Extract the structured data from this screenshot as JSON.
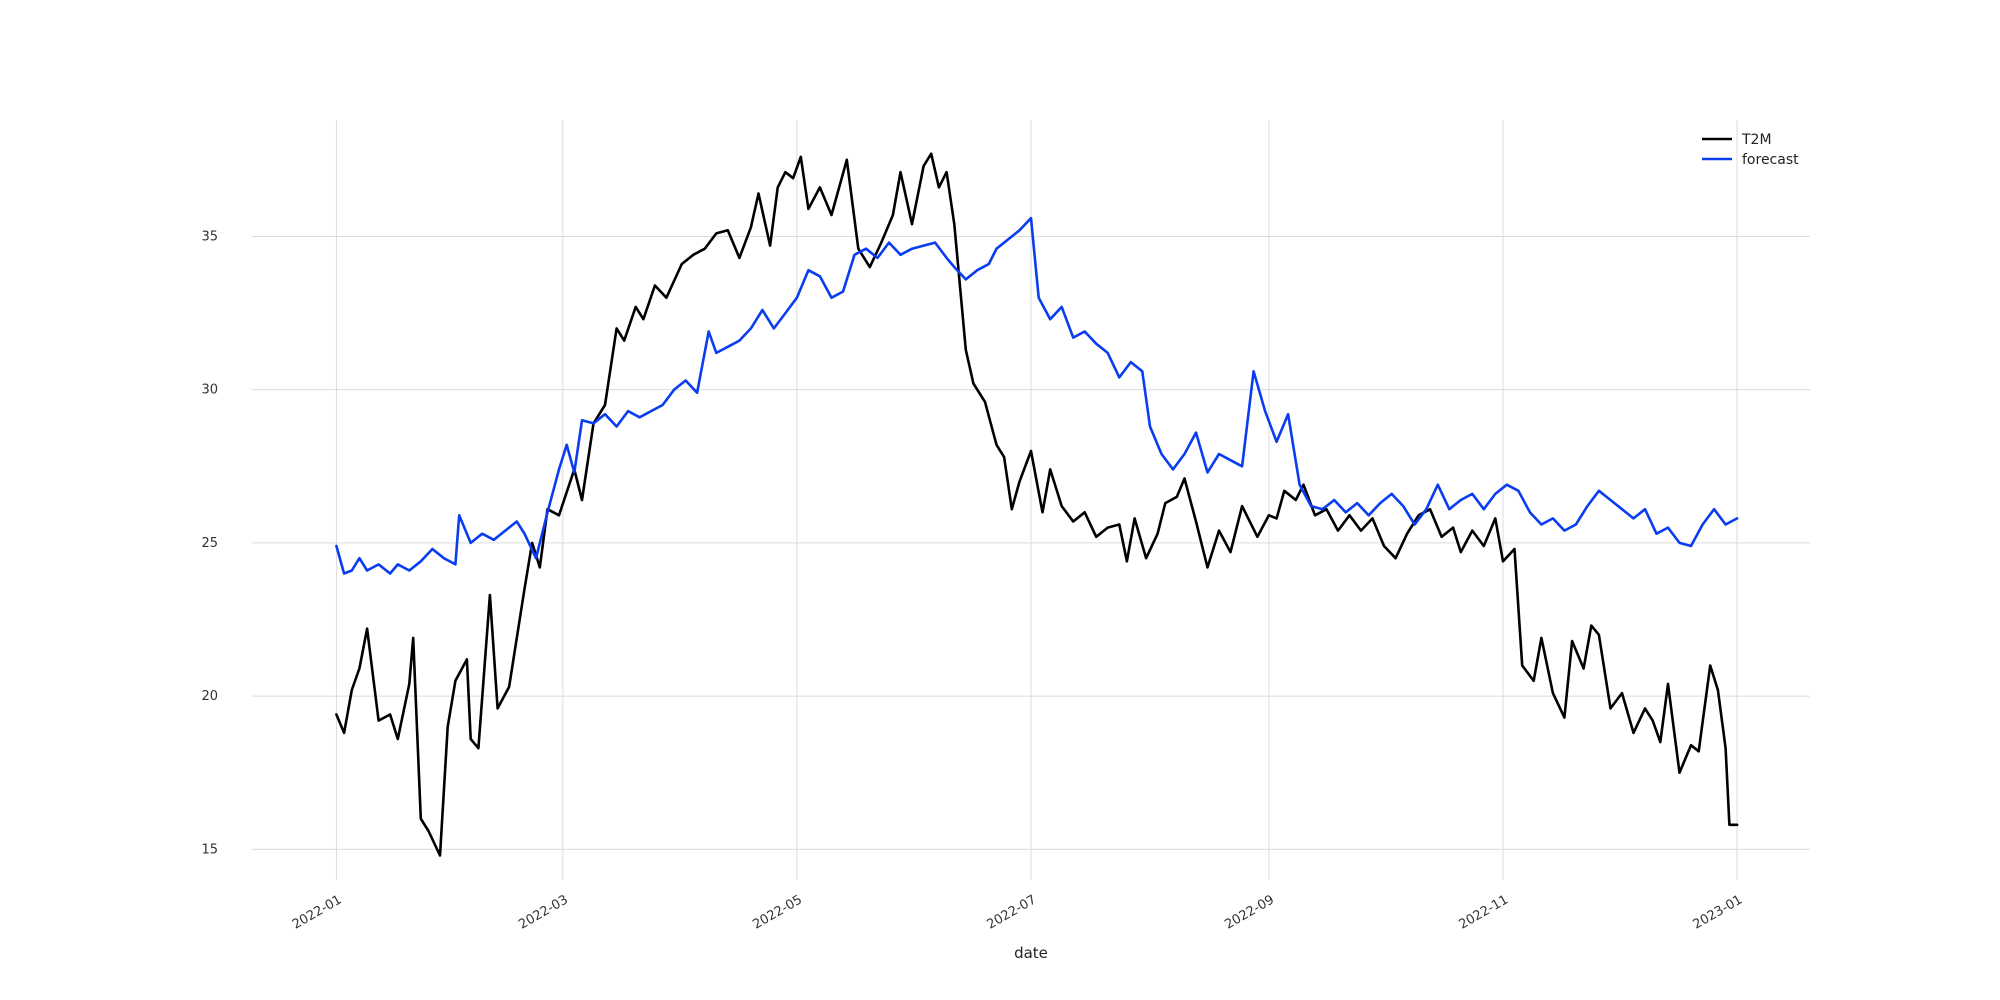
{
  "chart_data": {
    "type": "line",
    "title": "",
    "xlabel": "date",
    "ylabel": "",
    "x_axis": {
      "type": "date",
      "range": [
        "2021-12-10",
        "2023-01-20"
      ],
      "ticks": [
        "2022-01-01",
        "2022-03-01",
        "2022-05-01",
        "2022-07-01",
        "2022-09-01",
        "2022-11-01",
        "2023-01-01"
      ],
      "tick_labels": [
        "2022-01",
        "2022-03",
        "2022-05",
        "2022-07",
        "2022-09",
        "2022-11",
        "2023-01"
      ]
    },
    "y_axis": {
      "range": [
        14.0,
        38.8
      ],
      "ticks": [
        15,
        20,
        25,
        30,
        35
      ],
      "tick_labels": [
        "15",
        "20",
        "25",
        "30",
        "35"
      ]
    },
    "grid": true,
    "legend": {
      "placement": "top-right",
      "entries": [
        "T2M",
        "forecast"
      ]
    },
    "colors": {
      "T2M": "#000000",
      "forecast": "#0a3cf0"
    },
    "series": [
      {
        "name": "T2M",
        "points": [
          [
            "2022-01-01",
            19.4
          ],
          [
            "2022-01-03",
            18.8
          ],
          [
            "2022-01-05",
            20.2
          ],
          [
            "2022-01-07",
            20.9
          ],
          [
            "2022-01-09",
            22.2
          ],
          [
            "2022-01-12",
            19.2
          ],
          [
            "2022-01-15",
            19.4
          ],
          [
            "2022-01-17",
            18.6
          ],
          [
            "2022-01-20",
            20.4
          ],
          [
            "2022-01-21",
            21.9
          ],
          [
            "2022-01-23",
            16.0
          ],
          [
            "2022-01-25",
            15.6
          ],
          [
            "2022-01-28",
            14.8
          ],
          [
            "2022-01-30",
            19.0
          ],
          [
            "2022-02-01",
            20.5
          ],
          [
            "2022-02-04",
            21.2
          ],
          [
            "2022-02-05",
            18.6
          ],
          [
            "2022-02-07",
            18.3
          ],
          [
            "2022-02-10",
            23.3
          ],
          [
            "2022-02-12",
            19.6
          ],
          [
            "2022-02-15",
            20.3
          ],
          [
            "2022-02-19",
            23.5
          ],
          [
            "2022-02-21",
            25.0
          ],
          [
            "2022-02-23",
            24.2
          ],
          [
            "2022-02-25",
            26.1
          ],
          [
            "2022-02-28",
            25.9
          ],
          [
            "2022-03-04",
            27.4
          ],
          [
            "2022-03-06",
            26.4
          ],
          [
            "2022-03-09",
            28.9
          ],
          [
            "2022-03-12",
            29.5
          ],
          [
            "2022-03-15",
            32.0
          ],
          [
            "2022-03-17",
            31.6
          ],
          [
            "2022-03-20",
            32.7
          ],
          [
            "2022-03-22",
            32.3
          ],
          [
            "2022-03-25",
            33.4
          ],
          [
            "2022-03-28",
            33.0
          ],
          [
            "2022-04-01",
            34.1
          ],
          [
            "2022-04-04",
            34.4
          ],
          [
            "2022-04-07",
            34.6
          ],
          [
            "2022-04-10",
            35.1
          ],
          [
            "2022-04-13",
            35.2
          ],
          [
            "2022-04-16",
            34.3
          ],
          [
            "2022-04-19",
            35.3
          ],
          [
            "2022-04-21",
            36.4
          ],
          [
            "2022-04-24",
            34.7
          ],
          [
            "2022-04-26",
            36.6
          ],
          [
            "2022-04-28",
            37.1
          ],
          [
            "2022-04-30",
            36.9
          ],
          [
            "2022-05-02",
            37.6
          ],
          [
            "2022-05-04",
            35.9
          ],
          [
            "2022-05-07",
            36.6
          ],
          [
            "2022-05-10",
            35.7
          ],
          [
            "2022-05-14",
            37.5
          ],
          [
            "2022-05-17",
            34.6
          ],
          [
            "2022-05-20",
            34.0
          ],
          [
            "2022-05-23",
            34.8
          ],
          [
            "2022-05-26",
            35.7
          ],
          [
            "2022-05-28",
            37.1
          ],
          [
            "2022-05-31",
            35.4
          ],
          [
            "2022-06-03",
            37.3
          ],
          [
            "2022-06-05",
            37.7
          ],
          [
            "2022-06-07",
            36.6
          ],
          [
            "2022-06-09",
            37.1
          ],
          [
            "2022-06-11",
            35.4
          ],
          [
            "2022-06-14",
            31.3
          ],
          [
            "2022-06-16",
            30.2
          ],
          [
            "2022-06-19",
            29.6
          ],
          [
            "2022-06-22",
            28.2
          ],
          [
            "2022-06-24",
            27.8
          ],
          [
            "2022-06-26",
            26.1
          ],
          [
            "2022-06-28",
            27.0
          ],
          [
            "2022-07-01",
            28.0
          ],
          [
            "2022-07-04",
            26.0
          ],
          [
            "2022-07-06",
            27.4
          ],
          [
            "2022-07-09",
            26.2
          ],
          [
            "2022-07-12",
            25.7
          ],
          [
            "2022-07-15",
            26.0
          ],
          [
            "2022-07-18",
            25.2
          ],
          [
            "2022-07-21",
            25.5
          ],
          [
            "2022-07-24",
            25.6
          ],
          [
            "2022-07-26",
            24.4
          ],
          [
            "2022-07-28",
            25.8
          ],
          [
            "2022-07-31",
            24.5
          ],
          [
            "2022-08-03",
            25.3
          ],
          [
            "2022-08-05",
            26.3
          ],
          [
            "2022-08-08",
            26.5
          ],
          [
            "2022-08-10",
            27.1
          ],
          [
            "2022-08-13",
            25.7
          ],
          [
            "2022-08-16",
            24.2
          ],
          [
            "2022-08-19",
            25.4
          ],
          [
            "2022-08-22",
            24.7
          ],
          [
            "2022-08-25",
            26.2
          ],
          [
            "2022-08-29",
            25.2
          ],
          [
            "2022-09-01",
            25.9
          ],
          [
            "2022-09-03",
            25.8
          ],
          [
            "2022-09-05",
            26.7
          ],
          [
            "2022-09-08",
            26.4
          ],
          [
            "2022-09-10",
            26.9
          ],
          [
            "2022-09-13",
            25.9
          ],
          [
            "2022-09-16",
            26.1
          ],
          [
            "2022-09-19",
            25.4
          ],
          [
            "2022-09-22",
            25.9
          ],
          [
            "2022-09-25",
            25.4
          ],
          [
            "2022-09-28",
            25.8
          ],
          [
            "2022-10-01",
            24.9
          ],
          [
            "2022-10-04",
            24.5
          ],
          [
            "2022-10-07",
            25.3
          ],
          [
            "2022-10-10",
            25.9
          ],
          [
            "2022-10-13",
            26.1
          ],
          [
            "2022-10-16",
            25.2
          ],
          [
            "2022-10-19",
            25.5
          ],
          [
            "2022-10-21",
            24.7
          ],
          [
            "2022-10-24",
            25.4
          ],
          [
            "2022-10-27",
            24.9
          ],
          [
            "2022-10-30",
            25.8
          ],
          [
            "2022-11-01",
            24.4
          ],
          [
            "2022-11-04",
            24.8
          ],
          [
            "2022-11-06",
            21.0
          ],
          [
            "2022-11-09",
            20.5
          ],
          [
            "2022-11-11",
            21.9
          ],
          [
            "2022-11-14",
            20.1
          ],
          [
            "2022-11-17",
            19.3
          ],
          [
            "2022-11-19",
            21.8
          ],
          [
            "2022-11-22",
            20.9
          ],
          [
            "2022-11-24",
            22.3
          ],
          [
            "2022-11-26",
            22.0
          ],
          [
            "2022-11-29",
            19.6
          ],
          [
            "2022-12-02",
            20.1
          ],
          [
            "2022-12-05",
            18.8
          ],
          [
            "2022-12-08",
            19.6
          ],
          [
            "2022-12-10",
            19.2
          ],
          [
            "2022-12-12",
            18.5
          ],
          [
            "2022-12-14",
            20.4
          ],
          [
            "2022-12-17",
            17.5
          ],
          [
            "2022-12-20",
            18.4
          ],
          [
            "2022-12-22",
            18.2
          ],
          [
            "2022-12-25",
            21.0
          ],
          [
            "2022-12-27",
            20.2
          ],
          [
            "2022-12-29",
            18.3
          ],
          [
            "2022-12-30",
            15.8
          ],
          [
            "2023-01-01",
            15.8
          ]
        ]
      },
      {
        "name": "forecast",
        "points": [
          [
            "2022-01-01",
            24.9
          ],
          [
            "2022-01-03",
            24.0
          ],
          [
            "2022-01-05",
            24.1
          ],
          [
            "2022-01-07",
            24.5
          ],
          [
            "2022-01-09",
            24.1
          ],
          [
            "2022-01-12",
            24.3
          ],
          [
            "2022-01-15",
            24.0
          ],
          [
            "2022-01-17",
            24.3
          ],
          [
            "2022-01-20",
            24.1
          ],
          [
            "2022-01-23",
            24.4
          ],
          [
            "2022-01-26",
            24.8
          ],
          [
            "2022-01-29",
            24.5
          ],
          [
            "2022-02-01",
            24.3
          ],
          [
            "2022-02-02",
            25.9
          ],
          [
            "2022-02-05",
            25.0
          ],
          [
            "2022-02-08",
            25.3
          ],
          [
            "2022-02-11",
            25.1
          ],
          [
            "2022-02-14",
            25.4
          ],
          [
            "2022-02-17",
            25.7
          ],
          [
            "2022-02-19",
            25.3
          ],
          [
            "2022-02-22",
            24.5
          ],
          [
            "2022-02-25",
            26.0
          ],
          [
            "2022-02-28",
            27.4
          ],
          [
            "2022-03-02",
            28.2
          ],
          [
            "2022-03-04",
            27.3
          ],
          [
            "2022-03-06",
            29.0
          ],
          [
            "2022-03-09",
            28.9
          ],
          [
            "2022-03-12",
            29.2
          ],
          [
            "2022-03-15",
            28.8
          ],
          [
            "2022-03-18",
            29.3
          ],
          [
            "2022-03-21",
            29.1
          ],
          [
            "2022-03-24",
            29.3
          ],
          [
            "2022-03-27",
            29.5
          ],
          [
            "2022-03-30",
            30.0
          ],
          [
            "2022-04-02",
            30.3
          ],
          [
            "2022-04-05",
            29.9
          ],
          [
            "2022-04-08",
            31.9
          ],
          [
            "2022-04-10",
            31.2
          ],
          [
            "2022-04-13",
            31.4
          ],
          [
            "2022-04-16",
            31.6
          ],
          [
            "2022-04-19",
            32.0
          ],
          [
            "2022-04-22",
            32.6
          ],
          [
            "2022-04-25",
            32.0
          ],
          [
            "2022-04-28",
            32.5
          ],
          [
            "2022-05-01",
            33.0
          ],
          [
            "2022-05-04",
            33.9
          ],
          [
            "2022-05-07",
            33.7
          ],
          [
            "2022-05-10",
            33.0
          ],
          [
            "2022-05-13",
            33.2
          ],
          [
            "2022-05-16",
            34.4
          ],
          [
            "2022-05-19",
            34.6
          ],
          [
            "2022-05-22",
            34.3
          ],
          [
            "2022-05-25",
            34.8
          ],
          [
            "2022-05-28",
            34.4
          ],
          [
            "2022-05-31",
            34.6
          ],
          [
            "2022-06-03",
            34.7
          ],
          [
            "2022-06-06",
            34.8
          ],
          [
            "2022-06-09",
            34.3
          ],
          [
            "2022-06-11",
            34.0
          ],
          [
            "2022-06-14",
            33.6
          ],
          [
            "2022-06-17",
            33.9
          ],
          [
            "2022-06-20",
            34.1
          ],
          [
            "2022-06-22",
            34.6
          ],
          [
            "2022-06-25",
            34.9
          ],
          [
            "2022-06-28",
            35.2
          ],
          [
            "2022-07-01",
            35.6
          ],
          [
            "2022-07-03",
            33.0
          ],
          [
            "2022-07-06",
            32.3
          ],
          [
            "2022-07-09",
            32.7
          ],
          [
            "2022-07-12",
            31.7
          ],
          [
            "2022-07-15",
            31.9
          ],
          [
            "2022-07-18",
            31.5
          ],
          [
            "2022-07-21",
            31.2
          ],
          [
            "2022-07-24",
            30.4
          ],
          [
            "2022-07-27",
            30.9
          ],
          [
            "2022-07-30",
            30.6
          ],
          [
            "2022-08-01",
            28.8
          ],
          [
            "2022-08-04",
            27.9
          ],
          [
            "2022-08-07",
            27.4
          ],
          [
            "2022-08-10",
            27.9
          ],
          [
            "2022-08-13",
            28.6
          ],
          [
            "2022-08-16",
            27.3
          ],
          [
            "2022-08-19",
            27.9
          ],
          [
            "2022-08-22",
            27.7
          ],
          [
            "2022-08-25",
            27.5
          ],
          [
            "2022-08-28",
            30.6
          ],
          [
            "2022-08-31",
            29.3
          ],
          [
            "2022-09-03",
            28.3
          ],
          [
            "2022-09-06",
            29.2
          ],
          [
            "2022-09-09",
            26.9
          ],
          [
            "2022-09-12",
            26.2
          ],
          [
            "2022-09-15",
            26.1
          ],
          [
            "2022-09-18",
            26.4
          ],
          [
            "2022-09-21",
            26.0
          ],
          [
            "2022-09-24",
            26.3
          ],
          [
            "2022-09-27",
            25.9
          ],
          [
            "2022-09-30",
            26.3
          ],
          [
            "2022-10-03",
            26.6
          ],
          [
            "2022-10-06",
            26.2
          ],
          [
            "2022-10-09",
            25.6
          ],
          [
            "2022-10-12",
            26.1
          ],
          [
            "2022-10-15",
            26.9
          ],
          [
            "2022-10-18",
            26.1
          ],
          [
            "2022-10-21",
            26.4
          ],
          [
            "2022-10-24",
            26.6
          ],
          [
            "2022-10-27",
            26.1
          ],
          [
            "2022-10-30",
            26.6
          ],
          [
            "2022-11-02",
            26.9
          ],
          [
            "2022-11-05",
            26.7
          ],
          [
            "2022-11-08",
            26.0
          ],
          [
            "2022-11-11",
            25.6
          ],
          [
            "2022-11-14",
            25.8
          ],
          [
            "2022-11-17",
            25.4
          ],
          [
            "2022-11-20",
            25.6
          ],
          [
            "2022-11-23",
            26.2
          ],
          [
            "2022-11-26",
            26.7
          ],
          [
            "2022-11-29",
            26.4
          ],
          [
            "2022-12-02",
            26.1
          ],
          [
            "2022-12-05",
            25.8
          ],
          [
            "2022-12-08",
            26.1
          ],
          [
            "2022-12-11",
            25.3
          ],
          [
            "2022-12-14",
            25.5
          ],
          [
            "2022-12-17",
            25.0
          ],
          [
            "2022-12-20",
            24.9
          ],
          [
            "2022-12-23",
            25.6
          ],
          [
            "2022-12-26",
            26.1
          ],
          [
            "2022-12-29",
            25.6
          ],
          [
            "2023-01-01",
            25.8
          ]
        ]
      }
    ]
  }
}
